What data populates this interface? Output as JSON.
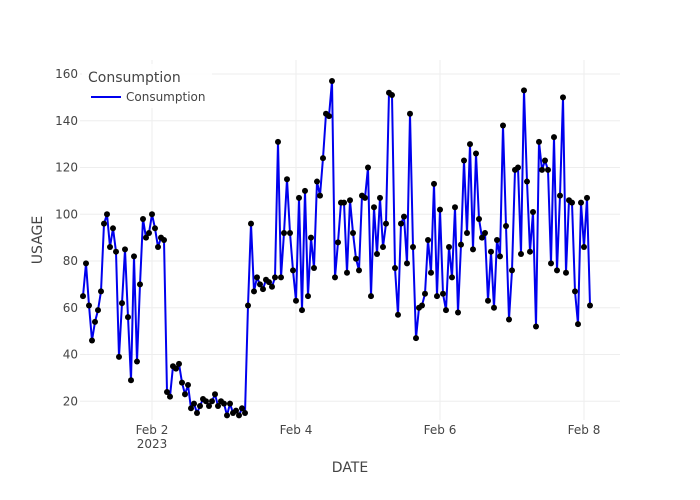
{
  "chart_data": {
    "type": "line",
    "mode": "lines+markers",
    "xlabel": "DATE",
    "ylabel": "USAGE",
    "legend_title": "Consumption",
    "legend_position": "top-left",
    "grid": true,
    "line_color": "#0000ee",
    "marker_color": "#000000",
    "xlim": [
      "2023-02-01 00:00",
      "2023-02-08 12:00"
    ],
    "ylim": [
      12,
      166
    ],
    "x_ticks": [
      {
        "value": "2023-02-02",
        "label": "Feb 2",
        "sublabel": "2023"
      },
      {
        "value": "2023-02-04",
        "label": "Feb 4",
        "sublabel": ""
      },
      {
        "value": "2023-02-06",
        "label": "Feb 6",
        "sublabel": ""
      },
      {
        "value": "2023-02-08",
        "label": "Feb 8",
        "sublabel": ""
      }
    ],
    "y_ticks": [
      20,
      40,
      60,
      80,
      100,
      120,
      140,
      160
    ],
    "series": [
      {
        "name": "Consumption",
        "start": "2023-02-01 01:00",
        "interval_hours": 1,
        "values": [
          65,
          79,
          61,
          46,
          54,
          59,
          67,
          96,
          100,
          86,
          94,
          84,
          39,
          62,
          85,
          56,
          29,
          82,
          37,
          70,
          98,
          90,
          92,
          100,
          94,
          86,
          90,
          89,
          24,
          22,
          35,
          34,
          36,
          28,
          23,
          27,
          17,
          19,
          15,
          18,
          21,
          20,
          18,
          20,
          23,
          18,
          20,
          19,
          14,
          19,
          15,
          16,
          14,
          17,
          15,
          61,
          96,
          67,
          73,
          70,
          68,
          72,
          71,
          69,
          73,
          131,
          73,
          92,
          115,
          92,
          76,
          63,
          107,
          59,
          110,
          65,
          90,
          77,
          114,
          108,
          124,
          143,
          142,
          157,
          73,
          88,
          105,
          105,
          75,
          106,
          92,
          81,
          76,
          108,
          107,
          120,
          65,
          103,
          83,
          107,
          86,
          96,
          152,
          151,
          77,
          57,
          96,
          99,
          79,
          143,
          86,
          47,
          60,
          61,
          66,
          89,
          75,
          113,
          65,
          102,
          66,
          59,
          86,
          73,
          103,
          58,
          87,
          123,
          92,
          130,
          85,
          126,
          98,
          90,
          92,
          63,
          84,
          60,
          89,
          82,
          138,
          95,
          55,
          76,
          119,
          120,
          83,
          153,
          114,
          84,
          101,
          52,
          131,
          119,
          123,
          119,
          79,
          133,
          76,
          108,
          150,
          75,
          106,
          105,
          67,
          53,
          105,
          86,
          107,
          61
        ]
      }
    ]
  }
}
